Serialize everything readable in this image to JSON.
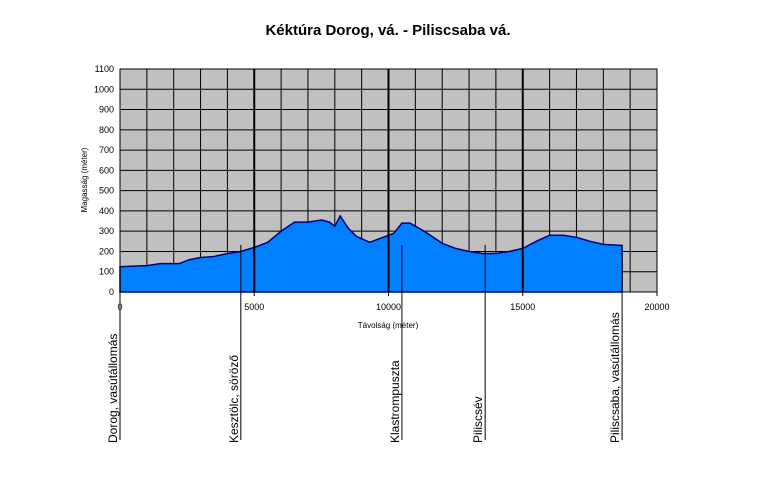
{
  "chart_data": {
    "type": "area",
    "title": "Kéktúra  Dorog, vá. - Piliscsaba vá.",
    "xlabel": "Távolság (méter)",
    "ylabel": "Magasság (méter)",
    "xlim": [
      0,
      20000
    ],
    "ylim": [
      0,
      1100
    ],
    "x_ticks": [
      0,
      5000,
      10000,
      15000,
      20000
    ],
    "y_ticks": [
      0,
      100,
      200,
      300,
      400,
      500,
      600,
      700,
      800,
      900,
      1000,
      1100
    ],
    "grid": true,
    "plot_background": "#c0c0c0",
    "fill_color": "#0080ff",
    "line_color": "#000080",
    "series": [
      {
        "x": [
          0,
          1000,
          1500,
          2200,
          2600,
          3000,
          3500,
          4000,
          4500,
          5000,
          5500,
          6000,
          6500,
          7000,
          7500,
          7800,
          8000,
          8200,
          8500,
          8800,
          9300,
          9800,
          10200,
          10500,
          10800,
          11200,
          11500,
          12000,
          12500,
          13000,
          13500,
          14000,
          14500,
          15000,
          15500,
          16000,
          16500,
          17000,
          17500,
          18000,
          18700
        ],
        "y": [
          125,
          130,
          140,
          140,
          160,
          170,
          175,
          190,
          200,
          220,
          245,
          300,
          345,
          345,
          355,
          345,
          325,
          375,
          315,
          275,
          245,
          270,
          290,
          340,
          340,
          310,
          285,
          240,
          215,
          200,
          190,
          190,
          200,
          215,
          250,
          280,
          280,
          270,
          250,
          235,
          230
        ]
      }
    ],
    "major_lines_x": [
      5000,
      10000,
      15000
    ],
    "waypoints": [
      {
        "label": "Dorog, vasútállomás",
        "x": 0
      },
      {
        "label": "Kesztölc, söröző",
        "x": 4500
      },
      {
        "label": "Klastrompuszta",
        "x": 10500
      },
      {
        "label": "Piliscsév",
        "x": 13600
      },
      {
        "label": "Piliscsaba, vasútállomás",
        "x": 18700
      }
    ]
  }
}
